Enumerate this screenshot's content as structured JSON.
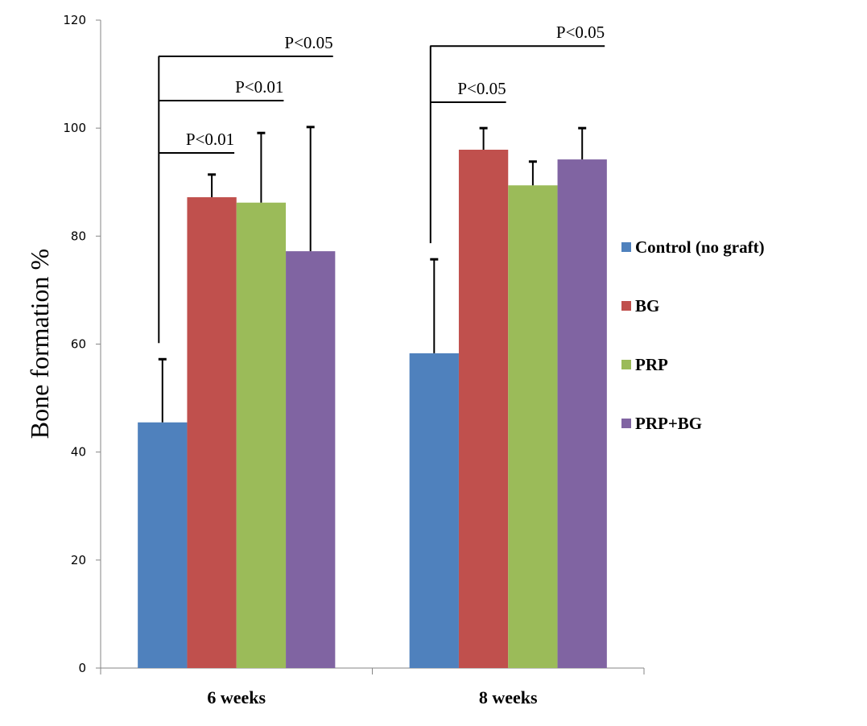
{
  "chart_data": {
    "type": "bar",
    "title": "",
    "xlabel": "",
    "ylabel": "Bone formation %",
    "ylim": [
      0,
      120
    ],
    "yticks": [
      "0",
      "20",
      "40",
      "60",
      "80",
      "100",
      "120"
    ],
    "grid": false,
    "legend_position": "right",
    "categories": [
      "6 weeks",
      "8 weeks"
    ],
    "series": [
      {
        "name": "Control (no graft)",
        "color": "#4F81BD",
        "values": [
          45.5,
          58.3
        ],
        "error_upper": [
          57.2,
          75.7
        ]
      },
      {
        "name": "BG",
        "color": "#C0504D",
        "values": [
          87.2,
          96.0
        ],
        "error_upper": [
          91.4,
          100.0
        ]
      },
      {
        "name": "PRP",
        "color": "#9BBB59",
        "values": [
          86.2,
          89.4
        ],
        "error_upper": [
          99.1,
          93.8
        ]
      },
      {
        "name": "PRP+BG",
        "color": "#8064A2",
        "values": [
          77.2,
          94.2
        ],
        "error_upper": [
          100.2,
          100.0
        ]
      }
    ],
    "annotations": [
      {
        "category": 0,
        "from_series": 0,
        "to_series": 3,
        "label": "P<0.05",
        "y": 113.3
      },
      {
        "category": 0,
        "from_series": 0,
        "to_series": 2,
        "label": "P<0.01",
        "y": 105.1
      },
      {
        "category": 0,
        "from_series": 0,
        "to_series": 1,
        "label": "P<0.01",
        "y": 95.4
      },
      {
        "category": 1,
        "from_series": 0,
        "to_series": 3,
        "label": "P<0.05",
        "y": 115.2
      },
      {
        "category": 1,
        "from_series": 0,
        "to_series": 1,
        "label": "P<0.05",
        "y": 104.8
      }
    ]
  }
}
